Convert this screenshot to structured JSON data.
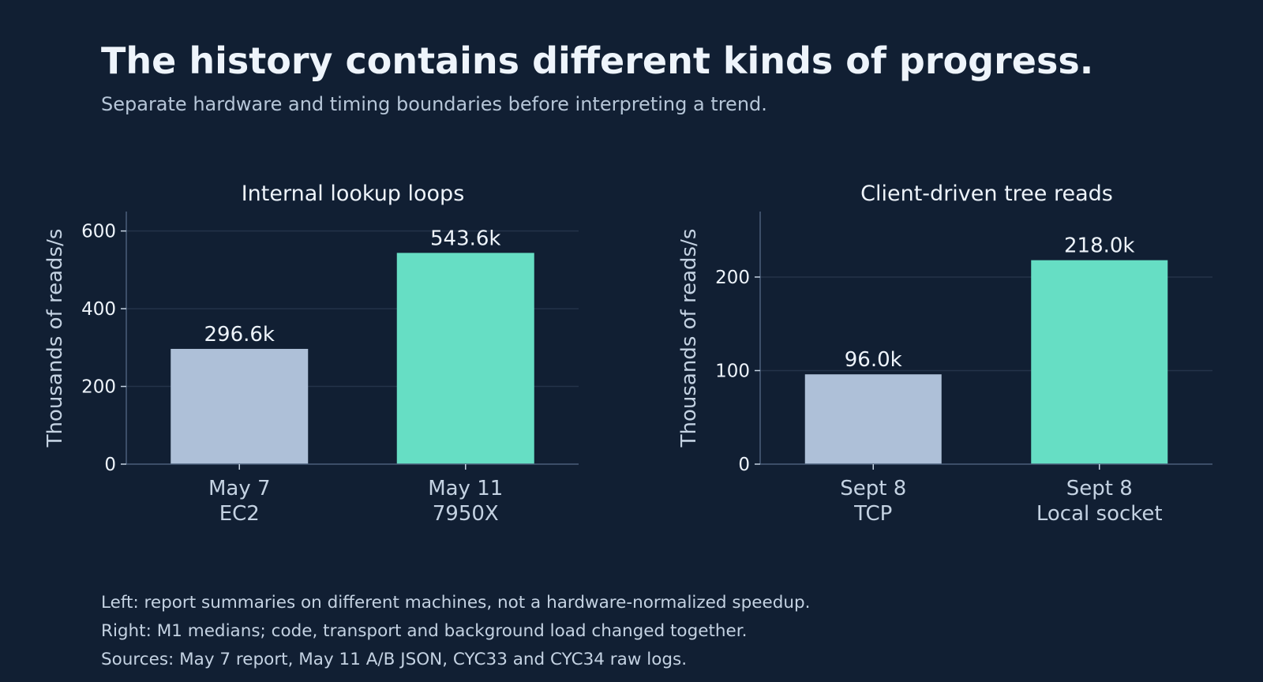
{
  "header": {
    "title": "The history contains different kinds of progress.",
    "subtitle": "Separate hardware and timing boundaries before interpreting a trend."
  },
  "colors": {
    "background": "#111f33",
    "before": "#aec0d8",
    "after": "#66dec4",
    "grid": "#243349",
    "axis": "#4a5f7a"
  },
  "chart_data": [
    {
      "type": "bar",
      "title": "Internal lookup loops",
      "ylabel": "Thousands of reads/s",
      "ylim": [
        0,
        650
      ],
      "yticks": [
        0,
        200,
        400,
        600
      ],
      "categories": [
        [
          "May 7",
          "EC2"
        ],
        [
          "May 11",
          "7950X"
        ]
      ],
      "values": [
        296.6,
        543.6
      ],
      "labels": [
        "296.6k",
        "543.6k"
      ],
      "grid": true
    },
    {
      "type": "bar",
      "title": "Client-driven tree reads",
      "ylabel": "Thousands of reads/s",
      "ylim": [
        0,
        270
      ],
      "yticks": [
        0,
        100,
        200
      ],
      "categories": [
        [
          "Sept 8",
          "TCP"
        ],
        [
          "Sept 8",
          "Local socket"
        ]
      ],
      "values": [
        96.0,
        218.0
      ],
      "labels": [
        "96.0k",
        "218.0k"
      ],
      "grid": true
    }
  ],
  "notes": [
    "Left: report summaries on different machines, not a hardware-normalized speedup.",
    "Right: M1 medians; code, transport and background load changed together.",
    "Sources: May 7 report, May 11 A/B JSON, CYC33 and CYC34 raw logs."
  ]
}
